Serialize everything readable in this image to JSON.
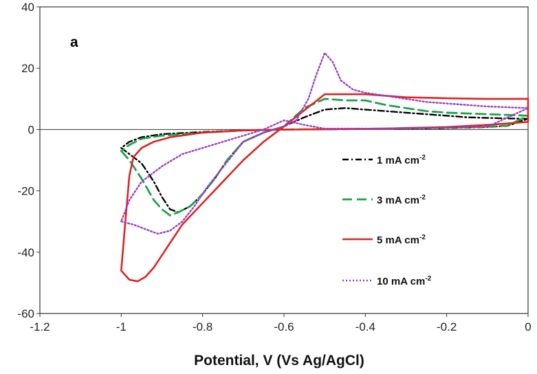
{
  "chart_data": {
    "type": "line",
    "title": "",
    "panel_label": "a",
    "xlabel": "Potential, V (Vs Ag/AgCl)",
    "ylabel": "",
    "xlim": [
      -1.2,
      0
    ],
    "ylim": [
      -60,
      40
    ],
    "xticks": [
      "-1.2",
      "-1",
      "-0.8",
      "-0.6",
      "-0.4",
      "-0.2",
      "0"
    ],
    "yticks": [
      "-60",
      "-40",
      "-20",
      "0",
      "20",
      "40"
    ],
    "grid": false,
    "legend_position": "center-right",
    "series": [
      {
        "name": "1 mA cm",
        "unit_exponent": "-2",
        "color": "#000000",
        "style": "dash-dot",
        "x": [
          -1.0,
          -0.98,
          -0.95,
          -0.92,
          -0.9,
          -0.88,
          -0.86,
          -0.83,
          -0.8,
          -0.77,
          -0.74,
          -0.7,
          -0.65,
          -0.6,
          -0.55,
          -0.5,
          -0.45,
          -0.4,
          -0.35,
          -0.3,
          -0.25,
          -0.2,
          -0.15,
          -0.1,
          -0.05,
          0.0,
          -0.05,
          -0.1,
          -0.2,
          -0.3,
          -0.4,
          -0.5,
          -0.6,
          -0.7,
          -0.8,
          -0.9,
          -0.95,
          -0.98,
          -1.0
        ],
        "y": [
          -6,
          -8,
          -11,
          -17,
          -22,
          -26,
          -27,
          -25,
          -21,
          -16,
          -10,
          -4,
          -1,
          1,
          4,
          6.5,
          7,
          6.5,
          6,
          5.5,
          5,
          4.5,
          4,
          3.8,
          3.6,
          3.5,
          1.2,
          0.8,
          0.5,
          0.3,
          0.2,
          0.1,
          0,
          -0.3,
          -0.8,
          -1.5,
          -2.5,
          -4,
          -6
        ]
      },
      {
        "name": "3 mA cm",
        "unit_exponent": "-2",
        "color": "#1aa34a",
        "style": "dash",
        "x": [
          -1.0,
          -0.98,
          -0.95,
          -0.92,
          -0.9,
          -0.88,
          -0.86,
          -0.83,
          -0.8,
          -0.77,
          -0.74,
          -0.7,
          -0.65,
          -0.6,
          -0.55,
          -0.5,
          -0.45,
          -0.4,
          -0.35,
          -0.3,
          -0.25,
          -0.2,
          -0.1,
          0.0,
          -0.05,
          -0.1,
          -0.2,
          -0.3,
          -0.4,
          -0.5,
          -0.6,
          -0.7,
          -0.8,
          -0.9,
          -0.95,
          -0.98,
          -1.0
        ],
        "y": [
          -7,
          -10,
          -16,
          -23,
          -26,
          -28,
          -27,
          -25,
          -21,
          -16,
          -10,
          -4,
          -1,
          1,
          7,
          10,
          9.5,
          9.5,
          8,
          7,
          6,
          5.5,
          5,
          4.5,
          1.3,
          0.9,
          0.6,
          0.4,
          0.2,
          0.1,
          0,
          -0.3,
          -1,
          -2,
          -3,
          -5,
          -7
        ]
      },
      {
        "name": "5 mA cm",
        "unit_exponent": "-2",
        "color": "#e02222",
        "style": "solid",
        "x": [
          -0.6,
          -0.65,
          -0.7,
          -0.75,
          -0.8,
          -0.85,
          -0.88,
          -0.9,
          -0.92,
          -0.94,
          -0.96,
          -0.98,
          -1.0,
          -0.99,
          -0.98,
          -0.97,
          -0.95,
          -0.92,
          -0.88,
          -0.8,
          -0.7,
          -0.6,
          -0.5,
          -0.4,
          -0.35,
          -0.3,
          -0.2,
          -0.1,
          0.0,
          0.0,
          -0.1,
          -0.2,
          -0.3,
          -0.4,
          -0.5,
          -0.6
        ],
        "y": [
          1,
          -4,
          -10,
          -17,
          -24,
          -31,
          -37,
          -41,
          -45,
          -48,
          -49.5,
          -49,
          -46,
          -30,
          -15,
          -9,
          -6,
          -4,
          -2.5,
          -1,
          -0.3,
          0,
          0.1,
          0.2,
          0.3,
          0.5,
          0.8,
          1.5,
          2.5,
          10,
          10,
          10.2,
          10.5,
          11.5,
          11.5,
          1
        ]
      },
      {
        "name": "10 mA cm",
        "unit_exponent": "-2",
        "color": "#9b3fc4",
        "style": "dot",
        "x": [
          -1.0,
          -0.97,
          -0.94,
          -0.91,
          -0.88,
          -0.85,
          -0.82,
          -0.79,
          -0.76,
          -0.73,
          -0.7,
          -0.65,
          -0.6,
          -0.57,
          -0.54,
          -0.52,
          -0.5,
          -0.48,
          -0.46,
          -0.43,
          -0.4,
          -0.35,
          -0.3,
          -0.25,
          -0.2,
          -0.1,
          0.0,
          -0.1,
          -0.2,
          -0.3,
          -0.4,
          -0.5,
          -0.55,
          -0.6,
          -0.65,
          -0.7,
          -0.75,
          -0.8,
          -0.85,
          -0.9,
          -0.95,
          -0.98,
          -1.0
        ],
        "y": [
          -30,
          -31,
          -32.5,
          -34,
          -33,
          -30,
          -25,
          -19,
          -14,
          -9,
          -4,
          -1,
          1,
          3,
          10,
          18,
          25,
          22,
          16,
          13,
          12,
          11,
          10,
          9,
          8.5,
          7.5,
          7,
          0.9,
          0.6,
          0.4,
          0.3,
          0.3,
          1.5,
          3,
          0,
          -2,
          -4,
          -6,
          -8,
          -12,
          -17,
          -23,
          -30
        ]
      }
    ]
  }
}
